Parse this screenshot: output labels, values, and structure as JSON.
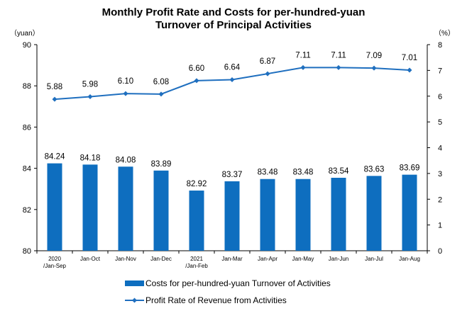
{
  "chart_data": {
    "type": "bar",
    "title": [
      "Monthly Profit Rate and Costs for per-hundred-yuan",
      "Turnover of Principal Activities"
    ],
    "left_unit": "（yuan）",
    "right_unit": "（%）",
    "categories": [
      [
        "2020",
        "/Jan-Sep"
      ],
      [
        "Jan-Oct"
      ],
      [
        "Jan-Nov"
      ],
      [
        "Jan-Dec"
      ],
      [
        "2021",
        "/Jan-Feb"
      ],
      [
        "Jan-Mar"
      ],
      [
        "Jan-Apr"
      ],
      [
        "Jan-May"
      ],
      [
        "Jan-Jun"
      ],
      [
        "Jan-Jul"
      ],
      [
        "Jan-Aug"
      ]
    ],
    "series": [
      {
        "name": "Costs for per-hundred-yuan Turnover of  Activities",
        "type": "bar",
        "axis": "left",
        "color": "#0E6EBF",
        "values": [
          84.24,
          84.18,
          84.08,
          83.89,
          82.92,
          83.37,
          83.48,
          83.48,
          83.54,
          83.63,
          83.69
        ],
        "labels": [
          "84.24",
          "84.18",
          "84.08",
          "83.89",
          "82.92",
          "83.37",
          "83.48",
          "83.48",
          "83.54",
          "83.63",
          "83.69"
        ]
      },
      {
        "name": "Profit Rate of Revenue from Activities",
        "type": "line",
        "axis": "right",
        "color": "#1F6FBF",
        "values": [
          5.88,
          5.98,
          6.1,
          6.08,
          6.6,
          6.64,
          6.87,
          7.11,
          7.11,
          7.09,
          7.01
        ],
        "labels": [
          "5.88",
          "5.98",
          "6.10",
          "6.08",
          "6.60",
          "6.64",
          "6.87",
          "7.11",
          "7.11",
          "7.09",
          "7.01"
        ]
      }
    ],
    "left_axis": {
      "min": 80,
      "max": 90,
      "ticks": [
        "80",
        "82",
        "84",
        "86",
        "88",
        "90"
      ]
    },
    "right_axis": {
      "min": 0,
      "max": 8,
      "ticks": [
        "0",
        "1",
        "2",
        "3",
        "4",
        "5",
        "6",
        "7",
        "8"
      ]
    },
    "grid": false,
    "legend_position": "bottom"
  }
}
